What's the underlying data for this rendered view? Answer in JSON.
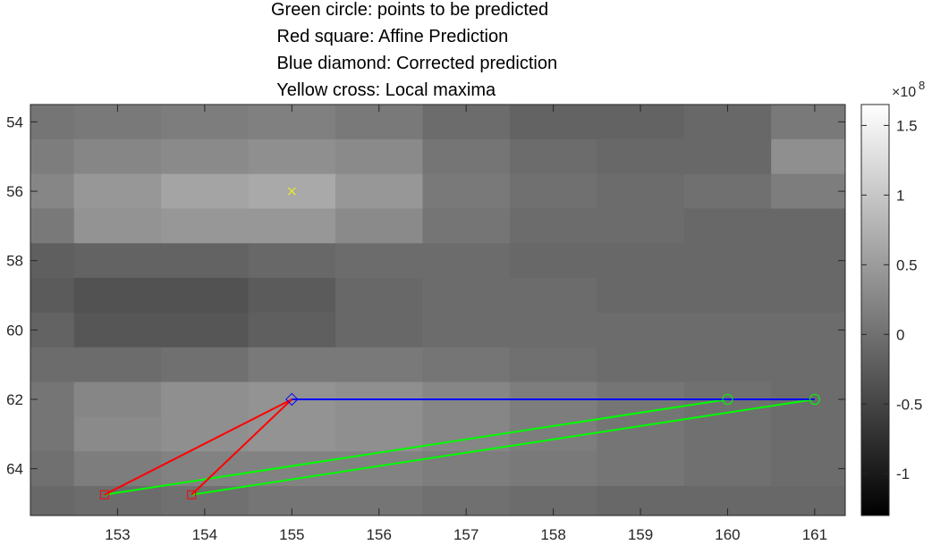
{
  "chart_data": {
    "type": "heatmap",
    "title_lines": [
      "Green circle: points to be predicted",
      " Red square: Affine Prediction",
      " Blue diamond: Corrected prediction",
      " Yellow cross: Local maxima"
    ],
    "xlim": [
      152.0,
      161.35
    ],
    "ylim": [
      53.5,
      65.35
    ],
    "x_ticks": [
      153,
      154,
      155,
      156,
      157,
      158,
      159,
      160,
      161
    ],
    "y_ticks": [
      54,
      56,
      58,
      60,
      62,
      64
    ],
    "heatmap": {
      "x_start": 151.5,
      "x_step": 1,
      "y_values": [
        54,
        55,
        56,
        57,
        58,
        59,
        60,
        61,
        62,
        63,
        64,
        65
      ],
      "cell_height": 1,
      "values": [
        [
          0.05,
          0.1,
          0.15,
          0.18,
          0.1,
          -0.05,
          -0.15,
          -0.15,
          -0.1,
          0.1
        ],
        [
          0.15,
          0.25,
          0.3,
          0.35,
          0.3,
          0.05,
          -0.05,
          -0.1,
          -0.1,
          0.35
        ],
        [
          0.25,
          0.45,
          0.6,
          0.65,
          0.45,
          0.1,
          0.0,
          -0.05,
          0.0,
          0.15
        ],
        [
          0.1,
          0.4,
          0.45,
          0.45,
          0.3,
          0.05,
          -0.05,
          -0.05,
          -0.1,
          -0.1
        ],
        [
          -0.2,
          -0.15,
          -0.15,
          -0.1,
          -0.05,
          -0.05,
          -0.1,
          -0.1,
          -0.1,
          -0.1
        ],
        [
          -0.25,
          -0.35,
          -0.35,
          -0.25,
          -0.1,
          -0.05,
          -0.05,
          -0.1,
          -0.1,
          -0.1
        ],
        [
          -0.15,
          -0.3,
          -0.3,
          -0.2,
          -0.1,
          -0.05,
          -0.05,
          -0.05,
          -0.05,
          -0.05
        ],
        [
          -0.05,
          -0.05,
          0.0,
          0.1,
          0.1,
          0.05,
          0.0,
          -0.05,
          -0.05,
          -0.05
        ],
        [
          0.05,
          0.25,
          0.35,
          0.4,
          0.35,
          0.25,
          0.15,
          0.05,
          0.0,
          -0.05
        ],
        [
          0.05,
          0.3,
          0.35,
          0.4,
          0.35,
          0.25,
          0.15,
          0.05,
          0.0,
          -0.05
        ],
        [
          0.0,
          0.15,
          0.2,
          0.2,
          0.2,
          0.15,
          0.1,
          0.05,
          0.0,
          -0.05
        ],
        [
          -0.1,
          -0.05,
          0.0,
          0.05,
          0.05,
          0.0,
          -0.05,
          -0.1,
          -0.1,
          -0.1
        ]
      ]
    },
    "colorbar": {
      "clim": [
        -1.3,
        1.65
      ],
      "ticks": [
        -1,
        -0.5,
        0,
        0.5,
        1,
        1.5
      ],
      "tick_labels": [
        "-1",
        "-0.5",
        "0",
        "0.5",
        "1",
        "1.5"
      ],
      "exponent_label": "×10",
      "exponent_power": "8",
      "colormap": "gray"
    },
    "series": {
      "green_points": {
        "color": "#00ff00",
        "marker": "circle",
        "points": [
          [
            160,
            62
          ],
          [
            161,
            62
          ]
        ]
      },
      "red_points": {
        "color": "#ff0000",
        "marker": "square",
        "points": [
          [
            152.85,
            64.75
          ],
          [
            153.85,
            64.75
          ]
        ]
      },
      "blue_point": {
        "color": "#0000ff",
        "marker": "diamond",
        "points": [
          [
            155,
            62
          ]
        ]
      },
      "yellow_point": {
        "color": "#ffff00",
        "marker": "x",
        "points": [
          [
            155,
            56
          ]
        ]
      },
      "green_lines": [
        [
          [
            152.85,
            64.75
          ],
          [
            160,
            62
          ]
        ],
        [
          [
            153.85,
            64.75
          ],
          [
            161,
            62
          ]
        ]
      ],
      "red_lines": [
        [
          [
            152.85,
            64.75
          ],
          [
            155,
            62
          ]
        ],
        [
          [
            153.85,
            64.75
          ],
          [
            155,
            62
          ]
        ]
      ],
      "blue_lines": [
        [
          [
            155,
            62
          ],
          [
            161,
            62
          ]
        ]
      ]
    }
  }
}
